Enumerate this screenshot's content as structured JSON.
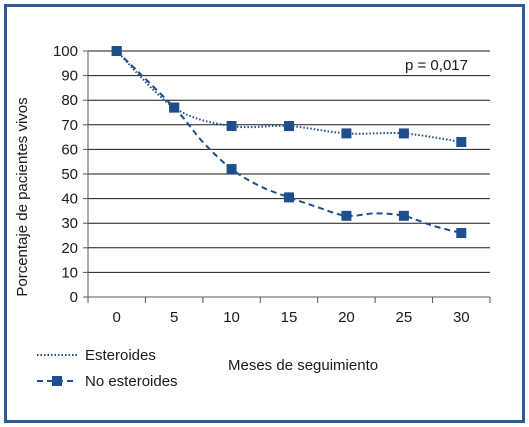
{
  "chart_data": {
    "type": "line",
    "xlabel": "Meses de seguimiento",
    "ylabel": "Porcentaje de pacientes vivos",
    "xlim": [
      -2.5,
      32.5
    ],
    "ylim": [
      0,
      100
    ],
    "x_ticks": [
      0,
      5,
      10,
      15,
      20,
      25,
      30
    ],
    "y_ticks": [
      0,
      10,
      20,
      30,
      40,
      50,
      60,
      70,
      80,
      90,
      100
    ],
    "grid": "horizontal",
    "legend_position": "bottom-left",
    "annotation": "p = 0,017",
    "colors": {
      "series": "#1f4e8c",
      "axis": "#555555",
      "grid": "#1a1a1a"
    },
    "series": [
      {
        "name": "Esteroides",
        "style": "dotted",
        "x": [
          0,
          5,
          10,
          15,
          20,
          25,
          30
        ],
        "y": [
          100,
          77,
          69.5,
          69.5,
          66.5,
          66.5,
          63
        ]
      },
      {
        "name": "No esteroides",
        "style": "dashed",
        "marker": "square",
        "x": [
          0,
          5,
          7.5,
          10,
          12.5,
          15,
          17.5,
          20,
          22.5,
          25,
          27.5,
          30
        ],
        "y": [
          100,
          77,
          63,
          52,
          45,
          40.5,
          36.5,
          33,
          34,
          33,
          29,
          26
        ]
      }
    ]
  }
}
